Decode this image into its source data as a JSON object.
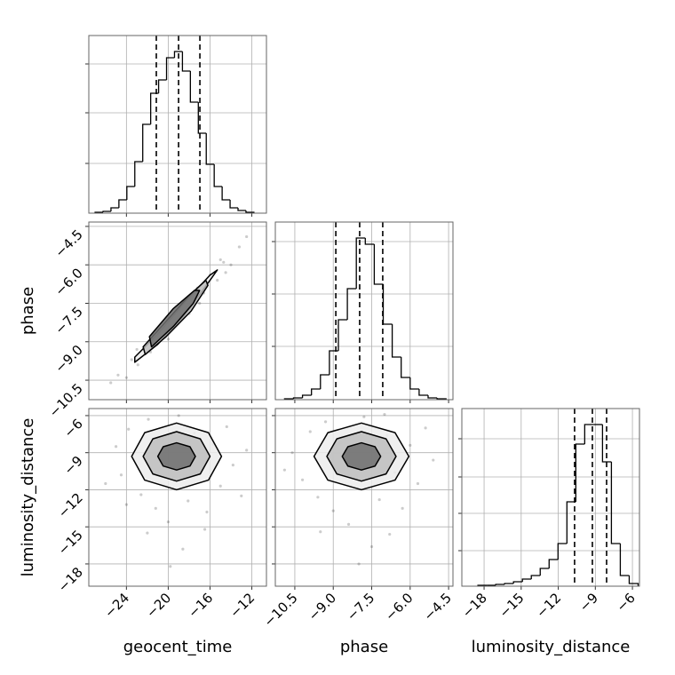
{
  "chart_data": [
    {
      "type": "histogram",
      "color": "#000000",
      "grid": true,
      "show_xtick_labels": false,
      "show_ytick_labels": false,
      "bins": [
        -27,
        -26.24,
        -25.48,
        -24.72,
        -23.96,
        -23.2,
        -22.44,
        -21.68,
        -20.92,
        -20.16,
        -19.4,
        -18.64,
        -17.88,
        -17.12,
        -16.36,
        -15.6,
        -14.84,
        -14.08,
        -13.32,
        -12.56,
        -11.8
      ],
      "counts": [
        1,
        2,
        6,
        15,
        30,
        58,
        100,
        135,
        150,
        175,
        182,
        160,
        125,
        90,
        55,
        30,
        15,
        6,
        3,
        1
      ],
      "quantiles": [
        -21.14,
        -19.01,
        -16.97
      ],
      "xlim": [
        -27.6,
        -10.6
      ],
      "xticks": [
        -24,
        -20,
        -16,
        -12
      ],
      "ylim": [
        0,
        200
      ],
      "yticks": [
        56,
        113,
        168
      ]
    },
    {
      "type": "scatter",
      "color": "#000000",
      "grid": true,
      "show_xtick_labels": false,
      "show_ytick_labels": true,
      "ylabel": "phase",
      "x": [
        -25.5,
        -24.8,
        -24,
        -23.5,
        -22.9,
        -22.3,
        -21.7,
        -21,
        -20.4,
        -19.8,
        -19.1,
        -18.5,
        -17.9,
        -17.2,
        -16.6,
        -16,
        -15.3,
        -14.7,
        -14,
        -13.2,
        -12.5,
        -23,
        -20,
        -17,
        -15,
        -21.5,
        -18,
        -14.5
      ],
      "y": [
        -10.6,
        -10.3,
        -10.4,
        -9.7,
        -9.9,
        -9.2,
        -9.4,
        -8.6,
        -8.8,
        -8.1,
        -8.3,
        -7.5,
        -7.7,
        -6.9,
        -7.1,
        -6.4,
        -6.6,
        -5.9,
        -6.0,
        -5.3,
        -4.9,
        -9.3,
        -8.9,
        -7.5,
        -5.8,
        -8.7,
        -7.9,
        -6.3
      ],
      "contours": [
        {
          "fill": "#ececec",
          "x": [
            -23.2,
            -21,
            -18.5,
            -16,
            -15.3,
            -16,
            -18.5,
            -21,
            -23.2
          ],
          "y": [
            -9.6,
            -8.7,
            -7.5,
            -6.4,
            -6.2,
            -6.6,
            -8.0,
            -9.1,
            -9.8
          ]
        },
        {
          "fill": "#bdbdbd",
          "x": [
            -22.4,
            -20.2,
            -18,
            -16.4,
            -16.2,
            -17.8,
            -20.2,
            -22.2
          ],
          "y": [
            -9.2,
            -8.2,
            -7.2,
            -6.6,
            -6.8,
            -7.8,
            -8.8,
            -9.5
          ]
        },
        {
          "fill": "#6e6e6e",
          "x": [
            -21.8,
            -19.5,
            -17.5,
            -17,
            -17.6,
            -19.5,
            -21.6
          ],
          "y": [
            -8.8,
            -7.7,
            -7.0,
            -7.0,
            -7.5,
            -8.4,
            -9.2
          ]
        }
      ],
      "xlim": [
        -27.6,
        -10.6
      ],
      "xticks": [
        -24,
        -20,
        -16,
        -12
      ],
      "ylim": [
        -11.26,
        -4.33
      ],
      "yticks": [
        {
          "value": -10.5,
          "label": "−10.5"
        },
        {
          "value": -9,
          "label": "−9.0"
        },
        {
          "value": -7.5,
          "label": "−7.5"
        },
        {
          "value": -6,
          "label": "−6.0"
        },
        {
          "value": -4.5,
          "label": "−4.5"
        }
      ]
    },
    {
      "type": "histogram",
      "color": "#000000",
      "grid": true,
      "show_xtick_labels": false,
      "show_ytick_labels": false,
      "bins": [
        -10.9,
        -10.55,
        -10.2,
        -9.85,
        -9.5,
        -9.15,
        -8.8,
        -8.45,
        -8.1,
        -7.75,
        -7.4,
        -7.05,
        -6.7,
        -6.35,
        -6,
        -5.65,
        -5.3,
        -4.95,
        -4.6
      ],
      "counts": [
        1,
        2,
        5,
        12,
        28,
        55,
        90,
        125,
        182,
        175,
        130,
        85,
        48,
        25,
        12,
        5,
        2,
        1
      ],
      "quantiles": [
        -8.9,
        -7.97,
        -7.07
      ],
      "xlim": [
        -11.26,
        -4.33
      ],
      "xticks": [
        -10.5,
        -9,
        -7.5,
        -6,
        -4.5
      ],
      "ylim": [
        0,
        200
      ],
      "yticks": [
        60,
        119,
        178
      ]
    },
    {
      "type": "scatter",
      "color": "#000000",
      "grid": true,
      "show_xtick_labels": true,
      "show_ytick_labels": true,
      "xlabel": "geocent_time",
      "ylabel": "luminosity_distance",
      "x": [
        -25,
        -24.5,
        -23.8,
        -22.6,
        -21.9,
        -21.2,
        -20.5,
        -20,
        -19.5,
        -19,
        -18.6,
        -18.1,
        -17.5,
        -17,
        -16.3,
        -15.7,
        -15,
        -14.4,
        -13.8,
        -13,
        -12.5,
        -26,
        -22,
        -16.5,
        -19.8,
        -24
      ],
      "y": [
        -8.5,
        -10.8,
        -7.1,
        -12.4,
        -6.3,
        -13.5,
        -8.0,
        -14.6,
        -11.0,
        -6.0,
        -16.8,
        -12.9,
        -7.4,
        -10.5,
        -13.8,
        -8.3,
        -11.7,
        -6.9,
        -10.0,
        -12.5,
        -8.8,
        -11.5,
        -15.5,
        -15.2,
        -18.2,
        -13.2
      ],
      "contours": [
        {
          "fill": "#ececec",
          "x": [
            -14.9,
            -16.15,
            -19.2,
            -22.25,
            -23.5,
            -22.25,
            -19.2,
            -16.15
          ],
          "y": [
            -9.3,
            -7.38,
            -6.6,
            -7.38,
            -9.3,
            -11.22,
            -12.0,
            -11.22
          ]
        },
        {
          "fill": "#bdbdbd",
          "x": [
            -16,
            -16.93,
            -19.2,
            -21.47,
            -22.4,
            -21.47,
            -19.2,
            -16.93
          ],
          "y": [
            -9.3,
            -7.88,
            -7.3,
            -7.88,
            -9.3,
            -10.72,
            -11.3,
            -10.72
          ]
        },
        {
          "fill": "#6e6e6e",
          "x": [
            -17.4,
            -17.92,
            -19.2,
            -20.48,
            -21,
            -20.48,
            -19.2,
            -17.92
          ],
          "y": [
            -9.3,
            -8.52,
            -8.2,
            -8.52,
            -9.3,
            -10.08,
            -10.4,
            -10.08
          ]
        }
      ],
      "xlim": [
        -27.6,
        -10.6
      ],
      "xticks": [
        {
          "value": -24,
          "label": "−24"
        },
        {
          "value": -20,
          "label": "−20"
        },
        {
          "value": -16,
          "label": "−16"
        },
        {
          "value": -12,
          "label": "−12"
        }
      ],
      "ylim": [
        -19.8,
        -5.43
      ],
      "yticks": [
        {
          "value": -18,
          "label": "−18"
        },
        {
          "value": -15,
          "label": "−15"
        },
        {
          "value": -12,
          "label": "−12"
        },
        {
          "value": -9,
          "label": "−9"
        },
        {
          "value": -6,
          "label": "−6"
        }
      ]
    },
    {
      "type": "scatter",
      "color": "#000000",
      "grid": true,
      "show_xtick_labels": true,
      "show_ytick_labels": false,
      "xlabel": "phase",
      "x": [
        -10.6,
        -10.2,
        -9.9,
        -9.6,
        -9.3,
        -9.0,
        -8.7,
        -8.4,
        -8.1,
        -7.8,
        -7.5,
        -7.2,
        -6.9,
        -6.6,
        -6.3,
        -6.0,
        -5.7,
        -5.4,
        -5.1,
        -10.9,
        -9.5,
        -6.8,
        -8.0,
        -7.0
      ],
      "y": [
        -9.0,
        -11.2,
        -7.3,
        -12.6,
        -6.5,
        -13.7,
        -8.2,
        -14.8,
        -10.9,
        -6.1,
        -16.6,
        -12.8,
        -7.6,
        -10.6,
        -13.5,
        -8.4,
        -11.5,
        -7.0,
        -9.6,
        -10.4,
        -15.4,
        -15.6,
        -18.0,
        -5.9
      ],
      "contours": [
        {
          "fill": "#ececec",
          "x": [
            -6.05,
            -6.59,
            -7.9,
            -9.21,
            -9.75,
            -9.21,
            -7.9,
            -6.59
          ],
          "y": [
            -9.3,
            -7.38,
            -6.6,
            -7.38,
            -9.3,
            -11.22,
            -12.0,
            -11.22
          ]
        },
        {
          "fill": "#bdbdbd",
          "x": [
            -6.55,
            -6.94,
            -7.9,
            -8.86,
            -9.25,
            -8.86,
            -7.9,
            -6.94
          ],
          "y": [
            -9.3,
            -7.88,
            -7.3,
            -7.88,
            -9.3,
            -10.72,
            -11.3,
            -10.72
          ]
        },
        {
          "fill": "#6e6e6e",
          "x": [
            -7.15,
            -7.37,
            -7.9,
            -8.43,
            -8.65,
            -8.43,
            -7.9,
            -7.37
          ],
          "y": [
            -9.3,
            -8.52,
            -8.2,
            -8.52,
            -9.3,
            -10.08,
            -10.4,
            -10.08
          ]
        }
      ],
      "xlim": [
        -11.26,
        -4.33
      ],
      "xticks": [
        {
          "value": -10.5,
          "label": "−10.5"
        },
        {
          "value": -9,
          "label": "−9.0"
        },
        {
          "value": -7.5,
          "label": "−7.5"
        },
        {
          "value": -6,
          "label": "−6.0"
        },
        {
          "value": -4.5,
          "label": "−4.5"
        }
      ],
      "ylim": [
        -19.8,
        -5.43
      ],
      "yticks": [
        -18,
        -15,
        -12,
        -9,
        -6
      ]
    },
    {
      "type": "histogram",
      "color": "#000000",
      "grid": true,
      "show_xtick_labels": true,
      "show_ytick_labels": false,
      "xlabel": "luminosity_distance",
      "bins": [
        -18.5,
        -17.78,
        -17.06,
        -16.34,
        -15.62,
        -14.9,
        -14.18,
        -13.46,
        -12.74,
        -12.02,
        -11.3,
        -10.58,
        -9.86,
        -9.14,
        -8.42,
        -7.7,
        -6.98,
        -6.26,
        -5.54
      ],
      "counts": [
        1,
        1,
        2,
        3,
        5,
        8,
        12,
        20,
        30,
        48,
        95,
        160,
        182,
        182,
        140,
        48,
        12,
        3
      ],
      "quantiles": [
        -10.68,
        -9.24,
        -8.09
      ],
      "xlim": [
        -19.8,
        -5.43
      ],
      "xticks": [
        {
          "value": -18,
          "label": "−18"
        },
        {
          "value": -15,
          "label": "−15"
        },
        {
          "value": -12,
          "label": "−12"
        },
        {
          "value": -9,
          "label": "−9"
        },
        {
          "value": -6,
          "label": "−6"
        }
      ],
      "ylim": [
        0,
        200
      ],
      "yticks": [
        40,
        82,
        123,
        166
      ]
    }
  ]
}
